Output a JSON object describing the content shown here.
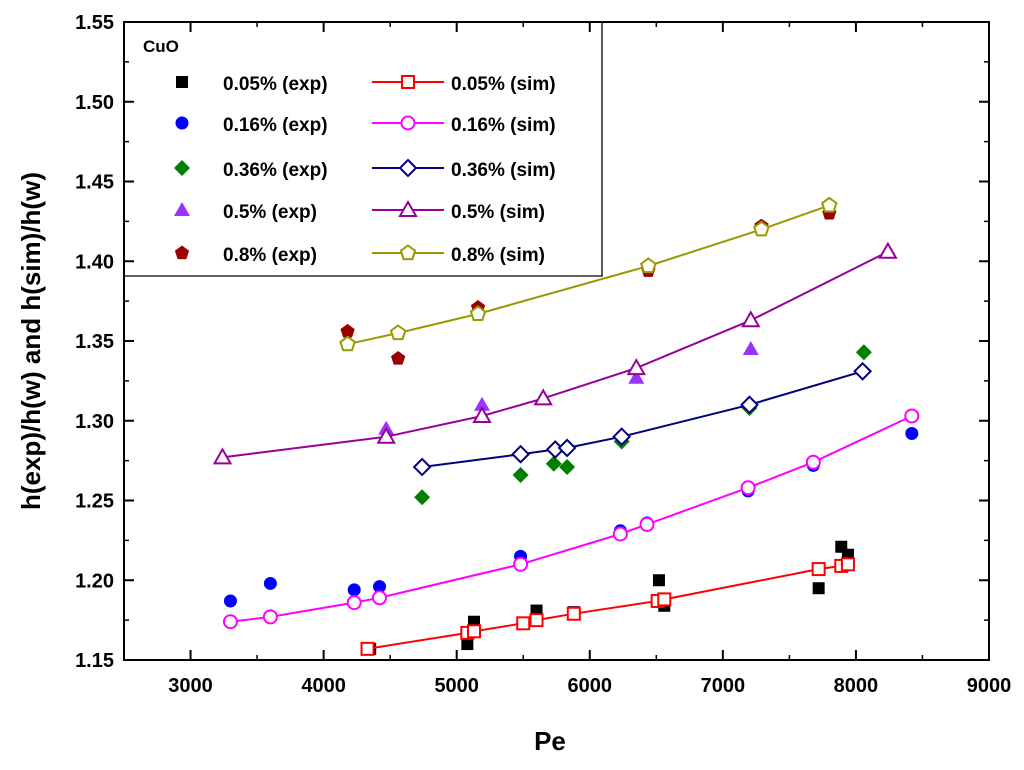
{
  "chart_data": {
    "type": "scatter",
    "title": "",
    "xlabel": "Pe",
    "ylabel": "h(exp)/h(w) and h(sim)/h(w)",
    "xlim": [
      2500,
      9000
    ],
    "ylim": [
      1.15,
      1.55
    ],
    "xticks": [
      "3000",
      "4000",
      "5000",
      "6000",
      "7000",
      "8000",
      "9000"
    ],
    "yticks": [
      "1.15",
      "1.20",
      "1.25",
      "1.30",
      "1.35",
      "1.40",
      "1.45",
      "1.50",
      "1.55"
    ],
    "grid": false,
    "legend": {
      "title": "CuO",
      "placement": "top-left",
      "exp_labels": [
        "0.05% (exp)",
        "0.16% (exp)",
        "0.36% (exp)",
        "0.5% (exp)",
        "0.8% (exp)"
      ],
      "sim_labels": [
        "0.05% (sim)",
        "0.16% (sim)",
        "0.36% (sim)",
        "0.5% (sim)",
        "0.8% (sim)"
      ]
    },
    "series": [
      {
        "name": "0.05% (exp)",
        "kind": "exp",
        "marker": "square",
        "color": "#000000",
        "points": [
          [
            4350,
            1.157
          ],
          [
            5080,
            1.16
          ],
          [
            5130,
            1.174
          ],
          [
            5600,
            1.181
          ],
          [
            5880,
            1.18
          ],
          [
            6520,
            1.2
          ],
          [
            6560,
            1.184
          ],
          [
            7720,
            1.195
          ],
          [
            7890,
            1.221
          ],
          [
            7940,
            1.216
          ]
        ]
      },
      {
        "name": "0.05% (sim)",
        "kind": "sim",
        "marker": "open-square",
        "color": "#ff0000",
        "points": [
          [
            4330,
            1.157
          ],
          [
            5080,
            1.167
          ],
          [
            5130,
            1.168
          ],
          [
            5500,
            1.173
          ],
          [
            5600,
            1.175
          ],
          [
            5880,
            1.179
          ],
          [
            6510,
            1.187
          ],
          [
            6560,
            1.188
          ],
          [
            7720,
            1.207
          ],
          [
            7890,
            1.209
          ],
          [
            7940,
            1.21
          ]
        ]
      },
      {
        "name": "0.16% (exp)",
        "kind": "exp",
        "marker": "circle",
        "color": "#0000ff",
        "points": [
          [
            3300,
            1.187
          ],
          [
            3600,
            1.198
          ],
          [
            4230,
            1.194
          ],
          [
            4420,
            1.196
          ],
          [
            5480,
            1.215
          ],
          [
            6230,
            1.231
          ],
          [
            6430,
            1.236
          ],
          [
            7190,
            1.256
          ],
          [
            7680,
            1.272
          ],
          [
            8420,
            1.292
          ]
        ]
      },
      {
        "name": "0.16% (sim)",
        "kind": "sim",
        "marker": "open-circle",
        "color": "#ff00ff",
        "points": [
          [
            3300,
            1.174
          ],
          [
            3600,
            1.177
          ],
          [
            4230,
            1.186
          ],
          [
            4420,
            1.189
          ],
          [
            5480,
            1.21
          ],
          [
            6230,
            1.229
          ],
          [
            6430,
            1.235
          ],
          [
            7190,
            1.258
          ],
          [
            7680,
            1.274
          ],
          [
            8420,
            1.303
          ]
        ]
      },
      {
        "name": "0.36% (exp)",
        "kind": "exp",
        "marker": "diamond",
        "color": "#008000",
        "points": [
          [
            4740,
            1.252
          ],
          [
            5480,
            1.266
          ],
          [
            5730,
            1.273
          ],
          [
            5830,
            1.271
          ],
          [
            6240,
            1.287
          ],
          [
            7200,
            1.308
          ],
          [
            8060,
            1.343
          ]
        ]
      },
      {
        "name": "0.36% (sim)",
        "kind": "sim",
        "marker": "open-diamond",
        "color": "#000080",
        "points": [
          [
            4740,
            1.271
          ],
          [
            5480,
            1.279
          ],
          [
            5740,
            1.282
          ],
          [
            5830,
            1.283
          ],
          [
            6240,
            1.29
          ],
          [
            7200,
            1.31
          ],
          [
            8050,
            1.331
          ]
        ]
      },
      {
        "name": "0.5% (exp)",
        "kind": "exp",
        "marker": "triangle",
        "color": "#9933ff",
        "points": [
          [
            4470,
            1.295
          ],
          [
            5190,
            1.31
          ],
          [
            6350,
            1.327
          ],
          [
            7210,
            1.345
          ]
        ]
      },
      {
        "name": "0.5% (sim)",
        "kind": "sim",
        "marker": "open-triangle",
        "color": "#990099",
        "points": [
          [
            3240,
            1.277
          ],
          [
            4470,
            1.29
          ],
          [
            5190,
            1.303
          ],
          [
            5650,
            1.314
          ],
          [
            6350,
            1.333
          ],
          [
            7210,
            1.363
          ],
          [
            8240,
            1.406
          ]
        ]
      },
      {
        "name": "0.8% (exp)",
        "kind": "exp",
        "marker": "pentagon",
        "color": "#990000",
        "points": [
          [
            4180,
            1.356
          ],
          [
            4560,
            1.339
          ],
          [
            5160,
            1.371
          ],
          [
            6440,
            1.394
          ],
          [
            7290,
            1.422
          ],
          [
            7800,
            1.43
          ]
        ]
      },
      {
        "name": "0.8% (sim)",
        "kind": "sim",
        "marker": "open-pentagon",
        "color": "#999900",
        "points": [
          [
            4180,
            1.348
          ],
          [
            4560,
            1.355
          ],
          [
            5160,
            1.367
          ],
          [
            6440,
            1.397
          ],
          [
            7290,
            1.42
          ],
          [
            7800,
            1.435
          ]
        ]
      }
    ]
  }
}
